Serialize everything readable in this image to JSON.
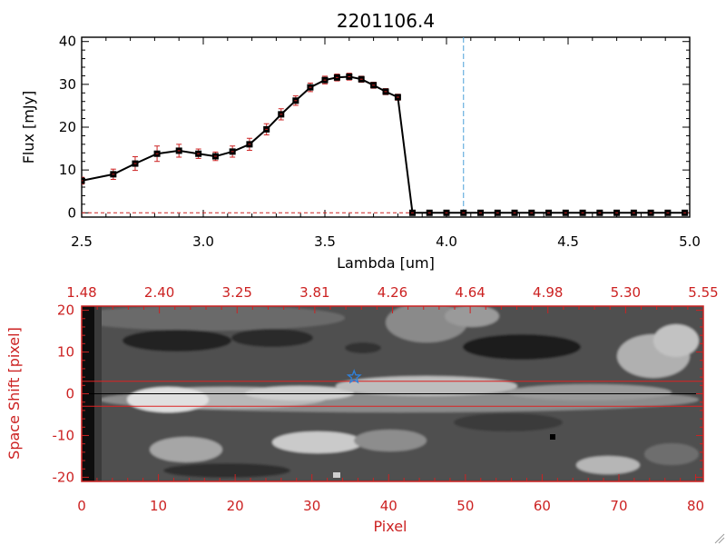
{
  "chart_data": [
    {
      "type": "line",
      "title": "2201106.4",
      "xlabel": "Lambda [um]",
      "ylabel": "Flux [mJy]",
      "xlim": [
        2.5,
        5.0
      ],
      "ylim": [
        -1,
        41
      ],
      "x_ticks": [
        "2.5",
        "3.0",
        "3.5",
        "4.0",
        "4.5",
        "5.0"
      ],
      "y_ticks": [
        "0",
        "10",
        "20",
        "30",
        "40"
      ],
      "grid": false,
      "vertical_line_x": 4.07,
      "colors": {
        "line": "#000000",
        "marker": "#000000",
        "error_bar": "#cc2222",
        "vline": "#4aa0d8",
        "zero_line": "#cc2222"
      },
      "series": [
        {
          "x": [
            2.5,
            2.63,
            2.72,
            2.81,
            2.9,
            2.98,
            3.05,
            3.12,
            3.19,
            3.26,
            3.32,
            3.38,
            3.44,
            3.5,
            3.55,
            3.6,
            3.65,
            3.7,
            3.75,
            3.8,
            3.86,
            3.93,
            4.0,
            4.07,
            4.14,
            4.21,
            4.28,
            4.35,
            4.42,
            4.49,
            4.56,
            4.63,
            4.7,
            4.77,
            4.84,
            4.91,
            4.98
          ],
          "y": [
            7.5,
            9,
            11.5,
            13.8,
            14.5,
            13.8,
            13.2,
            14.3,
            16,
            19.5,
            23,
            26.2,
            29.3,
            31,
            31.6,
            31.8,
            31.2,
            29.8,
            28.3,
            27,
            0,
            0,
            0,
            0,
            0,
            0,
            0,
            0,
            0,
            0,
            0,
            0,
            0,
            0,
            0,
            0,
            0
          ],
          "yerr": [
            0.8,
            1.2,
            1.6,
            1.8,
            1.5,
            1.1,
            1.0,
            1.3,
            1.4,
            1.3,
            1.3,
            1.1,
            1.0,
            0.9,
            0.8,
            0.8,
            0.7,
            0.7,
            0.7,
            0.7,
            0,
            0,
            0,
            0,
            0,
            0,
            0,
            0,
            0,
            0,
            0,
            0,
            0,
            0,
            0,
            0,
            0
          ]
        }
      ]
    },
    {
      "type": "heatmap",
      "xlabel": "Pixel",
      "ylabel": "Space Shift [pixel]",
      "xlim": [
        0,
        81
      ],
      "ylim": [
        -21,
        21
      ],
      "x_ticks": [
        "0",
        "10",
        "20",
        "30",
        "40",
        "50",
        "60",
        "70",
        "80"
      ],
      "y_ticks": [
        "-20",
        "-10",
        "0",
        "10",
        "20"
      ],
      "top_axis_ticks": [
        "1.48",
        "2.40",
        "3.25",
        "3.81",
        "4.26",
        "4.64",
        "4.98",
        "5.30",
        "5.55"
      ],
      "colormap": "grayscale",
      "horizontal_lines_y": [
        3,
        -3
      ],
      "center_line_y": 0,
      "star_marker": {
        "x": 35.5,
        "y": 4
      },
      "colors": {
        "axes": "#cc2222",
        "star": "#2f7fd8",
        "hlines": "#dd2222",
        "center": "#000000"
      }
    }
  ]
}
